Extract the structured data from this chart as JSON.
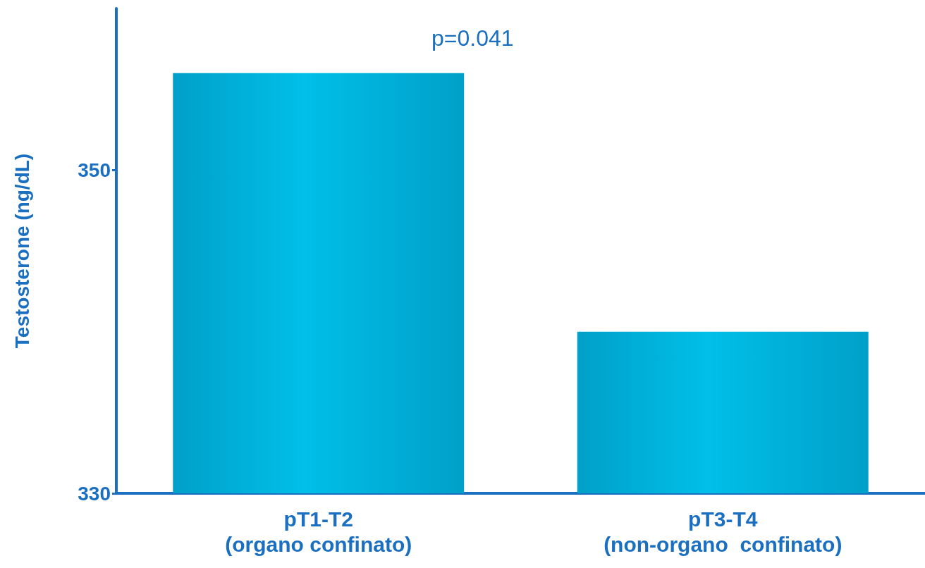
{
  "chart_data": {
    "type": "bar",
    "ylabel": "Testosterone (ng/dL)",
    "categories": [
      "pT1-T2\n(organo confinato)",
      "pT3-T4\n(non-organo  confinato)"
    ],
    "values": [
      356,
      340
    ],
    "color": "#00bfe8",
    "ylim": [
      330,
      360
    ],
    "yticks": [
      330,
      350
    ],
    "grid": false,
    "annotations": [
      "p=0.041"
    ]
  }
}
